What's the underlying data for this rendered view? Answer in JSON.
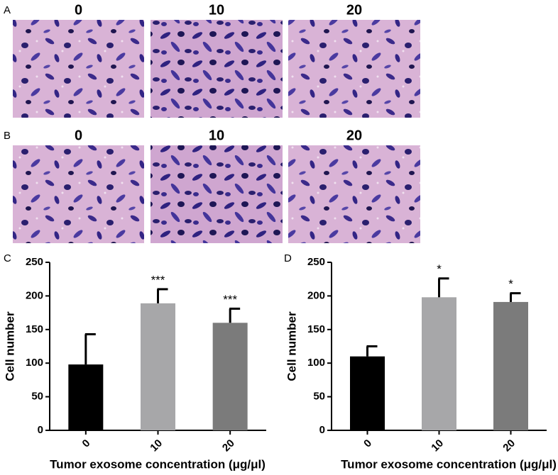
{
  "image_rows": [
    {
      "label": "A",
      "columns": [
        "0",
        "10",
        "20"
      ]
    },
    {
      "label": "B",
      "columns": [
        "0",
        "10",
        "20"
      ]
    }
  ],
  "chart_data": [
    {
      "type": "bar",
      "panel": "C",
      "y_label": "Cell number",
      "x_label": "Tumor exosome concentration (μg/μl)",
      "categories": [
        "0",
        "10",
        "20"
      ],
      "values": [
        98,
        189,
        160
      ],
      "errors": [
        45,
        21,
        21
      ],
      "significance": [
        null,
        "***",
        "***"
      ],
      "colors": [
        "#000000",
        "#a7a7a9",
        "#7b7b7b"
      ],
      "ylim": [
        0,
        250
      ],
      "yticks": [
        0,
        50,
        100,
        150,
        200,
        250
      ]
    },
    {
      "type": "bar",
      "panel": "D",
      "y_label": "Cell number",
      "x_label": "Tumor exosome concentration (μg/μl)",
      "categories": [
        "0",
        "10",
        "20"
      ],
      "values": [
        110,
        198,
        191
      ],
      "errors": [
        15,
        28,
        13
      ],
      "significance": [
        null,
        "*",
        "*"
      ],
      "colors": [
        "#000000",
        "#a7a7a9",
        "#7b7b7b"
      ],
      "ylim": [
        0,
        250
      ],
      "yticks": [
        0,
        50,
        100,
        150,
        200,
        250
      ]
    }
  ]
}
